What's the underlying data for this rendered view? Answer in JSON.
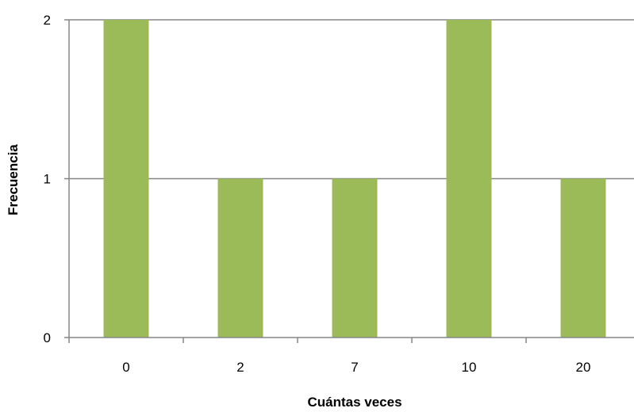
{
  "chart_data": {
    "type": "bar",
    "title": "",
    "xlabel": "Cuántas veces",
    "ylabel": "Frecuencia",
    "categories": [
      "0",
      "2",
      "7",
      "10",
      "20"
    ],
    "values": [
      2,
      1,
      1,
      2,
      1
    ],
    "ylim": [
      0,
      2
    ],
    "yticks": [
      "0",
      "1",
      "2"
    ],
    "grid": "horizontal",
    "legend": "none",
    "bar_color": "#9BBB59",
    "grid_color": "#868686",
    "axis_color": "#868686"
  }
}
